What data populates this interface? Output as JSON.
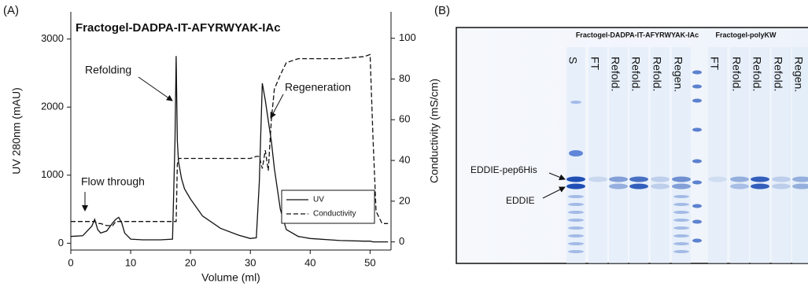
{
  "panels": [
    "(A)",
    "(B)"
  ],
  "chart_data": {
    "type": "line",
    "title": "Fractogel-DADPA-IT-AFYRWYAK-IAc",
    "x_label": "Volume (ml)",
    "y_label": "UV 280nm (mAU)",
    "y2_label": "Conductivity (mS/cm)",
    "x": [
      0,
      2,
      3.5,
      4,
      4.5,
      5,
      6,
      7,
      7.5,
      8,
      8.5,
      9,
      10,
      12,
      15,
      17,
      17.4,
      17.6,
      17.8,
      18,
      18.5,
      19,
      20,
      22,
      25,
      28,
      30,
      31,
      31.5,
      32,
      32.5,
      33,
      33.5,
      34,
      35,
      36,
      38,
      40,
      45,
      49,
      50,
      50.5,
      51,
      52,
      53
    ],
    "series": [
      {
        "name": "UV",
        "color": "#111111",
        "line_style": "solid",
        "values": [
          100,
          110,
          250,
          350,
          200,
          150,
          180,
          300,
          350,
          380,
          300,
          150,
          60,
          50,
          50,
          60,
          1500,
          2750,
          1500,
          1200,
          950,
          800,
          650,
          400,
          220,
          120,
          70,
          80,
          900,
          2350,
          2100,
          1800,
          1500,
          1100,
          500,
          200,
          100,
          70,
          40,
          30,
          30,
          20,
          20,
          20,
          20
        ]
      },
      {
        "name": "Conductivity",
        "color": "#111111",
        "line_style": "dashed",
        "axis": "y2",
        "values": [
          10,
          10,
          10,
          10,
          9,
          9,
          8,
          8,
          10,
          10,
          10,
          10,
          10,
          10,
          10,
          10,
          10,
          10,
          38,
          41,
          41,
          41,
          41,
          41,
          41,
          41,
          41,
          42,
          42,
          36,
          45,
          35,
          60,
          75,
          82,
          88,
          90,
          90,
          90,
          91,
          92,
          50,
          15,
          9,
          9
        ]
      }
    ],
    "annotations": [
      "Refolding",
      "Regeneration",
      "Flow through"
    ],
    "xlim": [
      0,
      53.5
    ],
    "xticks": [
      0,
      10,
      20,
      30,
      40,
      50
    ],
    "ylim": [
      -100,
      3400
    ],
    "yticks": [
      0,
      1000,
      2000,
      3000
    ],
    "y2lim": [
      -4,
      113
    ],
    "y2ticks": [
      0,
      20,
      40,
      60,
      80,
      100
    ],
    "legend": "lower right"
  },
  "gel": {
    "groups": [
      "Fractogel-DADPA-IT-AFYRWYAK-IAc",
      "Fractogel-polyKW"
    ],
    "lanes": [
      "S",
      "FT",
      "Refold.",
      "Refold.",
      "Refold.",
      "Regen.",
      "FT",
      "Refold.",
      "Refold.",
      "Refold.",
      "Regen."
    ],
    "bands": [
      "EDDIE-pep6His",
      "EDDIE"
    ]
  }
}
